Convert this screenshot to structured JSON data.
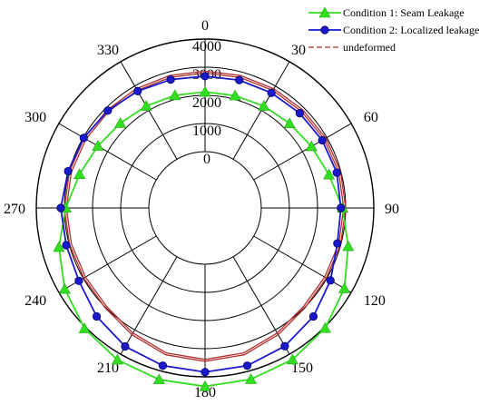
{
  "chart_data": {
    "type": "polar-line",
    "angle_unit": "degrees",
    "angle_zero": "top",
    "angle_direction": "clockwise",
    "angle_ticks": [
      0,
      30,
      60,
      90,
      120,
      150,
      180,
      210,
      240,
      270,
      300,
      330
    ],
    "angle_tick_labels": [
      "0",
      "30",
      "60",
      "90",
      "120",
      "150",
      "180",
      "210",
      "240",
      "270",
      "300",
      "330"
    ],
    "radial_range": [
      -2000,
      4000
    ],
    "radial_ticks": [
      0,
      1000,
      2000,
      3000,
      4000
    ],
    "radial_tick_labels": [
      "0",
      "1000",
      "2000",
      "3000",
      "4000"
    ],
    "grid": true,
    "legend_position": "top-right",
    "series": [
      {
        "name": "Condition 1: Seam Leakage",
        "color": "#33dd22",
        "marker": "triangle",
        "angles": [
          0,
          15,
          30,
          45,
          60,
          75,
          90,
          105,
          120,
          135,
          150,
          165,
          180,
          195,
          210,
          225,
          240,
          255,
          270,
          285,
          300,
          315,
          330,
          345,
          360
        ],
        "values": [
          2120,
          2130,
          2180,
          2250,
          2370,
          2560,
          2890,
          3270,
          3720,
          4040,
          4220,
          4300,
          4340,
          4310,
          4230,
          4060,
          3760,
          3380,
          2950,
          2620,
          2400,
          2260,
          2180,
          2140,
          2120
        ]
      },
      {
        "name": "Condition 2: Localized leakage",
        "color": "#1a1acc",
        "marker": "circle",
        "angles": [
          0,
          15,
          30,
          45,
          60,
          75,
          90,
          105,
          120,
          135,
          150,
          165,
          180,
          195,
          210,
          225,
          240,
          255,
          270,
          285,
          300,
          315,
          330,
          345,
          360
        ],
        "values": [
          2680,
          2700,
          2720,
          2760,
          2810,
          2850,
          2830,
          2870,
          3150,
          3450,
          3670,
          3800,
          3830,
          3800,
          3680,
          3450,
          3180,
          3110,
          3130,
          3040,
          2980,
          2890,
          2790,
          2720,
          2680
        ]
      },
      {
        "name": "undeformed",
        "color": "#b03030",
        "marker": "none",
        "angles": [
          0,
          15,
          30,
          45,
          60,
          75,
          90,
          105,
          120,
          135,
          150,
          165,
          180,
          195,
          210,
          225,
          240,
          255,
          270,
          285,
          300,
          315,
          330,
          345,
          360
        ],
        "values": [
          2860,
          2870,
          2890,
          2920,
          2960,
          2990,
          3000,
          2990,
          2980,
          3020,
          3200,
          3400,
          3450,
          3400,
          3200,
          3020,
          2980,
          2990,
          3000,
          2990,
          2960,
          2920,
          2890,
          2870,
          2860
        ]
      }
    ]
  }
}
